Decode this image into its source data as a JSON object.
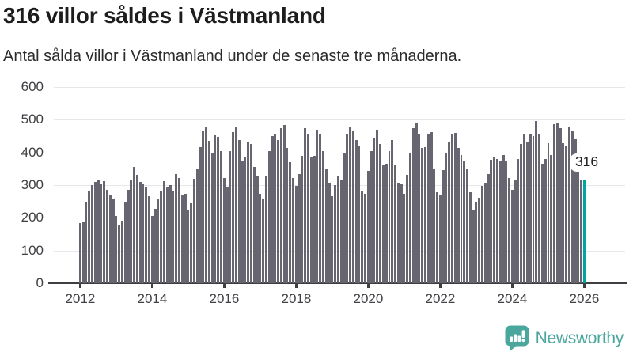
{
  "header": {
    "title": "316 villor såldes i Västmanland",
    "subtitle": "Antal sålda villor i Västmanland under de senaste tre månaderna."
  },
  "chart_data": {
    "type": "bar",
    "title": "316 villor såldes i Västmanland",
    "xlabel": "",
    "ylabel": "",
    "ylim": [
      0,
      600
    ],
    "yticks": [
      0,
      100,
      200,
      300,
      400,
      500,
      600
    ],
    "xtick_years": [
      2012,
      2014,
      2016,
      2018,
      2020,
      2022,
      2024,
      2026
    ],
    "grid": "horizontal",
    "legend_position": "none",
    "start_month": "2012-01",
    "frequency": "monthly",
    "values": [
      185,
      188,
      250,
      280,
      300,
      310,
      315,
      305,
      312,
      285,
      272,
      258,
      205,
      180,
      192,
      250,
      285,
      315,
      355,
      332,
      310,
      302,
      295,
      265,
      205,
      228,
      256,
      280,
      313,
      295,
      300,
      282,
      335,
      322,
      270,
      274,
      225,
      245,
      320,
      350,
      415,
      465,
      480,
      435,
      400,
      452,
      448,
      405,
      323,
      295,
      405,
      462,
      480,
      437,
      372,
      384,
      434,
      425,
      355,
      330,
      274,
      260,
      330,
      405,
      450,
      458,
      437,
      475,
      483,
      413,
      370,
      323,
      298,
      335,
      390,
      475,
      455,
      385,
      390,
      470,
      455,
      405,
      350,
      307,
      266,
      300,
      330,
      315,
      397,
      455,
      480,
      465,
      437,
      420,
      282,
      274,
      343,
      405,
      442,
      470,
      425,
      364,
      366,
      405,
      437,
      360,
      307,
      303,
      274,
      331,
      397,
      475,
      491,
      458,
      413,
      417,
      454,
      462,
      348,
      278,
      270,
      345,
      397,
      430,
      458,
      460,
      413,
      393,
      372,
      348,
      278,
      225,
      249,
      261,
      298,
      307,
      335,
      377,
      385,
      381,
      372,
      393,
      372,
      323,
      286,
      315,
      381,
      425,
      454,
      434,
      458,
      450,
      495,
      455,
      365,
      380,
      428,
      392,
      486,
      491,
      474,
      428,
      420,
      479,
      464,
      440,
      345,
      318,
      316
    ],
    "highlight": {
      "index": 168,
      "value": 316,
      "label": "316"
    },
    "colors": {
      "bar": "#666570",
      "highlight": "#00a4a0",
      "grid": "#e7e7ea",
      "axis": "#3d3d42"
    }
  },
  "annotation": {
    "label": "316"
  },
  "footer": {
    "brand": "Newsworthy",
    "brand_color": "#4ba79e"
  }
}
